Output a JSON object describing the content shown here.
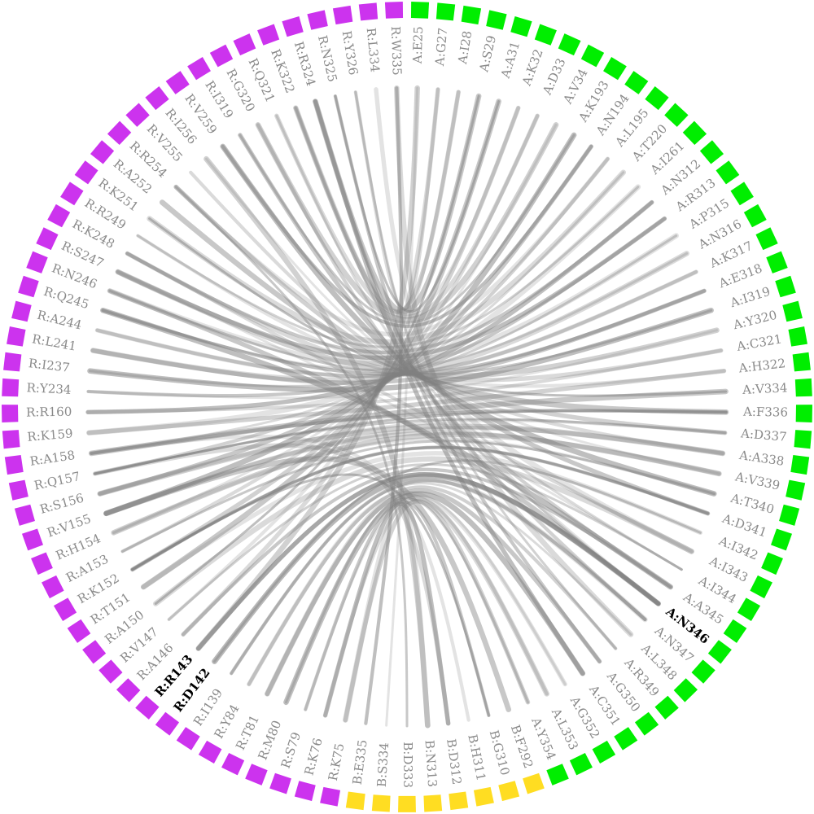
{
  "colors": {
    "chain_R": "#cc33ee",
    "chain_A": "#00ee00",
    "chain_B": "#ffdd22",
    "label_default": "#8a8a8a",
    "label_highlight": "#000000",
    "ribbon": "#808080"
  },
  "nodes": [
    {
      "id": "A:E25",
      "chain": "A"
    },
    {
      "id": "A:G27",
      "chain": "A"
    },
    {
      "id": "A:I28",
      "chain": "A"
    },
    {
      "id": "A:S29",
      "chain": "A"
    },
    {
      "id": "A:A31",
      "chain": "A"
    },
    {
      "id": "A:K32",
      "chain": "A"
    },
    {
      "id": "A:D33",
      "chain": "A"
    },
    {
      "id": "A:V34",
      "chain": "A"
    },
    {
      "id": "A:K193",
      "chain": "A"
    },
    {
      "id": "A:N194",
      "chain": "A"
    },
    {
      "id": "A:L195",
      "chain": "A"
    },
    {
      "id": "A:T220",
      "chain": "A"
    },
    {
      "id": "A:I261",
      "chain": "A"
    },
    {
      "id": "A:N312",
      "chain": "A"
    },
    {
      "id": "A:R313",
      "chain": "A"
    },
    {
      "id": "A:P315",
      "chain": "A"
    },
    {
      "id": "A:N316",
      "chain": "A"
    },
    {
      "id": "A:K317",
      "chain": "A"
    },
    {
      "id": "A:E318",
      "chain": "A"
    },
    {
      "id": "A:I319",
      "chain": "A"
    },
    {
      "id": "A:Y320",
      "chain": "A"
    },
    {
      "id": "A:C321",
      "chain": "A"
    },
    {
      "id": "A:H322",
      "chain": "A"
    },
    {
      "id": "A:V334",
      "chain": "A"
    },
    {
      "id": "A:F336",
      "chain": "A"
    },
    {
      "id": "A:D337",
      "chain": "A"
    },
    {
      "id": "A:A338",
      "chain": "A"
    },
    {
      "id": "A:V339",
      "chain": "A"
    },
    {
      "id": "A:T340",
      "chain": "A"
    },
    {
      "id": "A:D341",
      "chain": "A"
    },
    {
      "id": "A:I342",
      "chain": "A"
    },
    {
      "id": "A:I343",
      "chain": "A"
    },
    {
      "id": "A:I344",
      "chain": "A"
    },
    {
      "id": "A:A345",
      "chain": "A"
    },
    {
      "id": "A:N346",
      "chain": "A",
      "highlight": true
    },
    {
      "id": "A:N347",
      "chain": "A"
    },
    {
      "id": "A:L348",
      "chain": "A"
    },
    {
      "id": "A:R349",
      "chain": "A"
    },
    {
      "id": "A:G350",
      "chain": "A"
    },
    {
      "id": "A:C351",
      "chain": "A"
    },
    {
      "id": "A:G352",
      "chain": "A"
    },
    {
      "id": "A:L353",
      "chain": "A"
    },
    {
      "id": "A:Y354",
      "chain": "A"
    },
    {
      "id": "B:F292",
      "chain": "B"
    },
    {
      "id": "B:G310",
      "chain": "B"
    },
    {
      "id": "B:H311",
      "chain": "B"
    },
    {
      "id": "B:D312",
      "chain": "B"
    },
    {
      "id": "B:N313",
      "chain": "B"
    },
    {
      "id": "B:D333",
      "chain": "B"
    },
    {
      "id": "B:S334",
      "chain": "B"
    },
    {
      "id": "B:E335",
      "chain": "B"
    },
    {
      "id": "R:K75",
      "chain": "R"
    },
    {
      "id": "R:K76",
      "chain": "R"
    },
    {
      "id": "R:S79",
      "chain": "R"
    },
    {
      "id": "R:M80",
      "chain": "R"
    },
    {
      "id": "R:T81",
      "chain": "R"
    },
    {
      "id": "R:Y84",
      "chain": "R"
    },
    {
      "id": "R:I139",
      "chain": "R"
    },
    {
      "id": "R:D142",
      "chain": "R",
      "highlight": true
    },
    {
      "id": "R:R143",
      "chain": "R",
      "highlight": true
    },
    {
      "id": "R:A146",
      "chain": "R"
    },
    {
      "id": "R:V147",
      "chain": "R"
    },
    {
      "id": "R:A150",
      "chain": "R"
    },
    {
      "id": "R:T151",
      "chain": "R"
    },
    {
      "id": "R:K152",
      "chain": "R"
    },
    {
      "id": "R:A153",
      "chain": "R"
    },
    {
      "id": "R:H154",
      "chain": "R"
    },
    {
      "id": "R:V155",
      "chain": "R"
    },
    {
      "id": "R:S156",
      "chain": "R"
    },
    {
      "id": "R:Q157",
      "chain": "R"
    },
    {
      "id": "R:A158",
      "chain": "R"
    },
    {
      "id": "R:K159",
      "chain": "R"
    },
    {
      "id": "R:R160",
      "chain": "R"
    },
    {
      "id": "R:Y234",
      "chain": "R"
    },
    {
      "id": "R:I237",
      "chain": "R"
    },
    {
      "id": "R:L241",
      "chain": "R"
    },
    {
      "id": "R:A244",
      "chain": "R"
    },
    {
      "id": "R:Q245",
      "chain": "R"
    },
    {
      "id": "R:N246",
      "chain": "R"
    },
    {
      "id": "R:S247",
      "chain": "R"
    },
    {
      "id": "R:K248",
      "chain": "R"
    },
    {
      "id": "R:R249",
      "chain": "R"
    },
    {
      "id": "R:K251",
      "chain": "R"
    },
    {
      "id": "R:A252",
      "chain": "R"
    },
    {
      "id": "R:R254",
      "chain": "R"
    },
    {
      "id": "R:V255",
      "chain": "R"
    },
    {
      "id": "R:I256",
      "chain": "R"
    },
    {
      "id": "R:V259",
      "chain": "R"
    },
    {
      "id": "R:I319",
      "chain": "R"
    },
    {
      "id": "R:G320",
      "chain": "R"
    },
    {
      "id": "R:Q321",
      "chain": "R"
    },
    {
      "id": "R:K322",
      "chain": "R"
    },
    {
      "id": "R:R324",
      "chain": "R"
    },
    {
      "id": "R:N325",
      "chain": "R"
    },
    {
      "id": "R:Y326",
      "chain": "R"
    },
    {
      "id": "R:L334",
      "chain": "R"
    },
    {
      "id": "R:W335",
      "chain": "R"
    }
  ],
  "links": [
    [
      "A:E25",
      "B:S334"
    ],
    [
      "A:G27",
      "R:Y326"
    ],
    [
      "A:I28",
      "R:K322"
    ],
    [
      "A:S29",
      "R:R324"
    ],
    [
      "A:A31",
      "R:N325"
    ],
    [
      "A:K32",
      "R:K322"
    ],
    [
      "A:D33",
      "R:Q321"
    ],
    [
      "A:V34",
      "R:G320"
    ],
    [
      "A:K193",
      "R:I319"
    ],
    [
      "A:N194",
      "R:V259"
    ],
    [
      "A:L195",
      "R:R254"
    ],
    [
      "A:T220",
      "R:K251"
    ],
    [
      "A:I261",
      "R:R249"
    ],
    [
      "A:N312",
      "R:K248"
    ],
    [
      "A:R313",
      "R:S247"
    ],
    [
      "A:P315",
      "R:N246"
    ],
    [
      "A:N316",
      "R:Q245"
    ],
    [
      "A:K317",
      "R:A244"
    ],
    [
      "A:E318",
      "R:L241"
    ],
    [
      "A:I319",
      "R:I237"
    ],
    [
      "A:Y320",
      "R:Y234"
    ],
    [
      "A:C321",
      "R:R160"
    ],
    [
      "A:H322",
      "R:K159"
    ],
    [
      "A:V334",
      "R:A158"
    ],
    [
      "A:F336",
      "R:Q157"
    ],
    [
      "A:D337",
      "R:S156"
    ],
    [
      "A:A338",
      "R:V155"
    ],
    [
      "A:V339",
      "R:H154"
    ],
    [
      "A:T340",
      "R:A153"
    ],
    [
      "A:D341",
      "R:K152"
    ],
    [
      "A:I342",
      "R:T151"
    ],
    [
      "A:I343",
      "R:A150"
    ],
    [
      "A:I344",
      "R:V147"
    ],
    [
      "A:A345",
      "R:A146"
    ],
    [
      "A:N346",
      "R:R143"
    ],
    [
      "A:N347",
      "R:D142"
    ],
    [
      "A:L348",
      "R:I139"
    ],
    [
      "A:R349",
      "R:Y84"
    ],
    [
      "A:G350",
      "R:T81"
    ],
    [
      "A:C351",
      "R:M80"
    ],
    [
      "A:G352",
      "R:S79"
    ],
    [
      "A:L353",
      "R:K76"
    ],
    [
      "A:Y354",
      "R:K75"
    ],
    [
      "B:F292",
      "R:V155"
    ],
    [
      "B:G310",
      "R:K152"
    ],
    [
      "B:H311",
      "R:A158"
    ],
    [
      "B:D312",
      "R:Q157"
    ],
    [
      "B:N313",
      "R:I256"
    ],
    [
      "B:D333",
      "R:R254"
    ],
    [
      "B:E335",
      "R:W335"
    ],
    [
      "R:L334",
      "A:N346"
    ],
    [
      "R:W335",
      "A:L348"
    ],
    [
      "R:Y326",
      "A:R349"
    ],
    [
      "R:N325",
      "A:G350"
    ],
    [
      "R:R324",
      "A:C351"
    ],
    [
      "R:K322",
      "A:I343"
    ],
    [
      "R:Q321",
      "A:I344"
    ],
    [
      "R:G320",
      "A:A345"
    ],
    [
      "R:I319",
      "A:D341"
    ],
    [
      "R:V259",
      "A:T340"
    ],
    [
      "R:I256",
      "A:V339"
    ],
    [
      "R:V255",
      "A:A338"
    ],
    [
      "R:R254",
      "A:D337"
    ],
    [
      "R:A252",
      "A:F336"
    ],
    [
      "R:K251",
      "A:V334"
    ],
    [
      "R:R249",
      "A:H322"
    ],
    [
      "R:K248",
      "A:C321"
    ],
    [
      "R:S247",
      "A:Y320"
    ],
    [
      "R:N246",
      "A:I319"
    ],
    [
      "R:Q245",
      "A:E318"
    ],
    [
      "R:A244",
      "A:K317"
    ],
    [
      "R:L241",
      "A:N316"
    ],
    [
      "R:I237",
      "A:P315"
    ],
    [
      "R:Y234",
      "A:R313"
    ],
    [
      "R:R160",
      "A:N312"
    ],
    [
      "R:K159",
      "A:I261"
    ],
    [
      "R:A158",
      "A:T220"
    ],
    [
      "R:Q157",
      "A:L195"
    ],
    [
      "R:S156",
      "A:N194"
    ],
    [
      "R:V155",
      "A:K193"
    ],
    [
      "R:H154",
      "A:V34"
    ],
    [
      "R:A153",
      "A:D33"
    ],
    [
      "R:K152",
      "A:K32"
    ],
    [
      "R:T151",
      "A:A31"
    ],
    [
      "R:A150",
      "A:S29"
    ],
    [
      "R:V147",
      "A:I28"
    ],
    [
      "R:A146",
      "A:G27"
    ],
    [
      "R:R143",
      "A:E25"
    ],
    [
      "R:D142",
      "A:I342"
    ],
    [
      "R:I139",
      "A:N347"
    ],
    [
      "R:Y84",
      "A:G352"
    ],
    [
      "R:T81",
      "A:L353"
    ],
    [
      "R:M80",
      "A:Y354"
    ],
    [
      "R:S79",
      "B:G310"
    ],
    [
      "R:K76",
      "B:D312"
    ],
    [
      "R:K75",
      "B:N313"
    ],
    [
      "R:K322",
      "A:N346"
    ],
    [
      "R:R324",
      "A:N347"
    ],
    [
      "R:N246",
      "A:N346"
    ],
    [
      "R:Q245",
      "A:A345"
    ],
    [
      "R:S247",
      "A:I344"
    ],
    [
      "R:K248",
      "A:I343"
    ],
    [
      "R:R143",
      "A:N346"
    ],
    [
      "R:D142",
      "A:N346"
    ],
    [
      "R:K152",
      "A:D341"
    ],
    [
      "R:H154",
      "A:T340"
    ],
    [
      "R:V155",
      "A:V339"
    ],
    [
      "R:S156",
      "A:A338"
    ],
    [
      "R:Q157",
      "A:D337"
    ],
    [
      "R:A158",
      "A:F336"
    ]
  ]
}
